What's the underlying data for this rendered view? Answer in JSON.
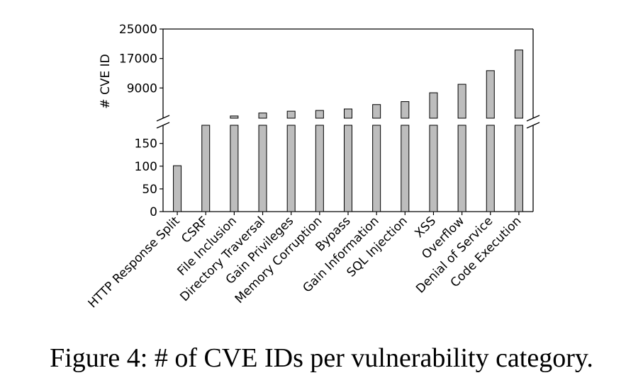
{
  "caption": "Figure 4: # of CVE IDs per vulnerability category.",
  "chart_data": {
    "type": "bar",
    "broken_axis": true,
    "ylabel": "# CVE ID",
    "categories": [
      "HTTP Response Split",
      "CSRF",
      "File Inclusion",
      "Directory Traversal",
      "Gain Privileges",
      "Memory Corruption",
      "Bypass",
      "Gain Information",
      "SQL Injection",
      "XSS",
      "Overflow",
      "Denial of Service",
      "Code Execution"
    ],
    "values": [
      101,
      800,
      1400,
      2200,
      2700,
      2900,
      3300,
      4500,
      5300,
      7700,
      10000,
      13700,
      19300
    ],
    "lower_axis": {
      "ylim": [
        0,
        190
      ],
      "ticks": [
        "0",
        "50",
        "100",
        "150"
      ]
    },
    "upper_axis": {
      "ylim": [
        800,
        25000
      ],
      "ticks": [
        "9000",
        "17000",
        "25000"
      ]
    },
    "colors": {
      "bar_fill": "#bdbdbd",
      "bar_stroke": "#000000"
    },
    "grid": false,
    "legend": "none"
  }
}
